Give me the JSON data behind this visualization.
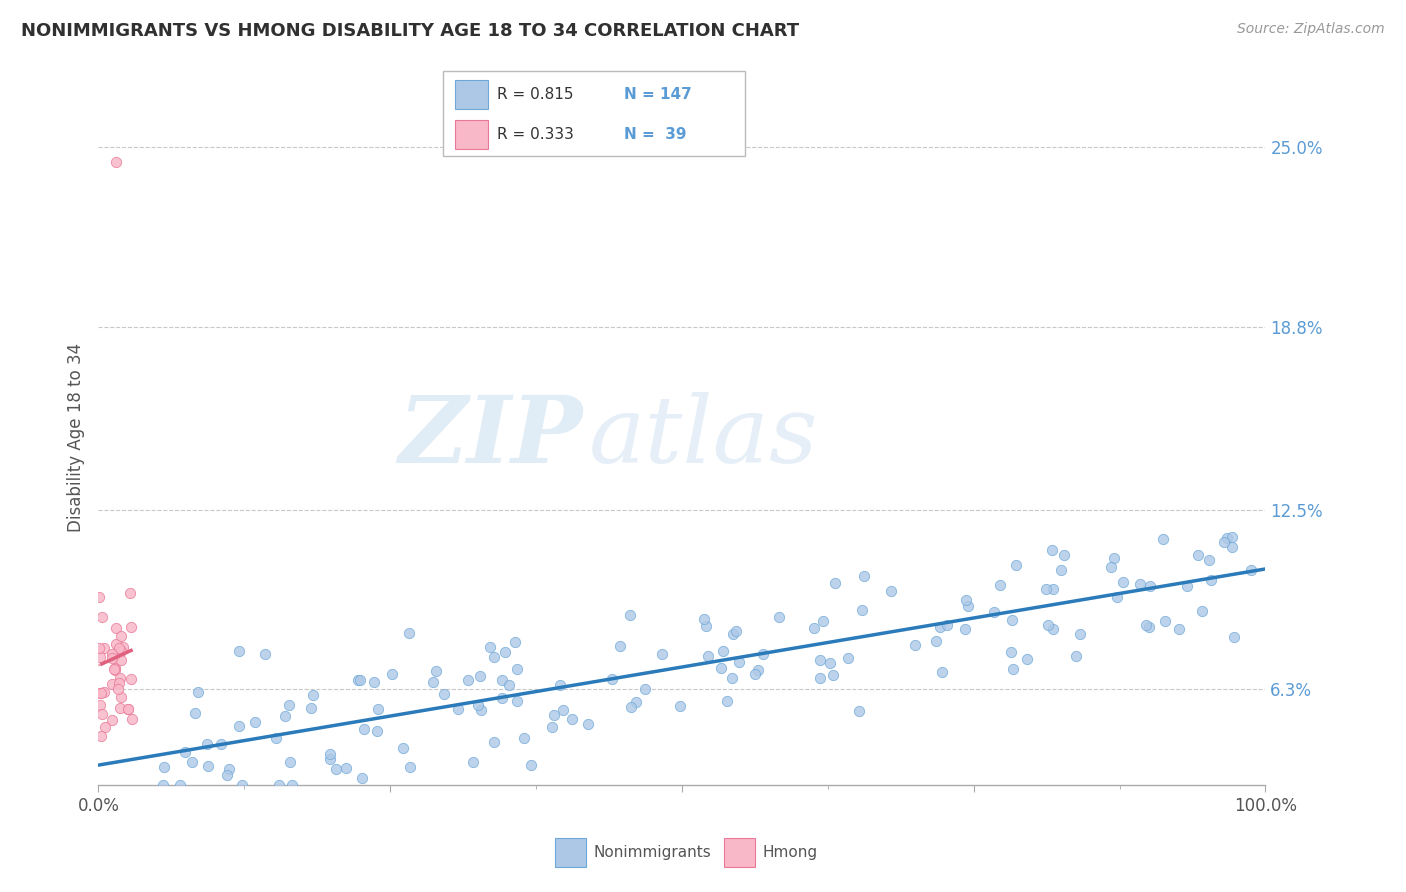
{
  "title": "NONIMMIGRANTS VS HMONG DISABILITY AGE 18 TO 34 CORRELATION CHART",
  "source": "Source: ZipAtlas.com",
  "ylabel": "Disability Age 18 to 34",
  "xlim": [
    0,
    100
  ],
  "ylim": [
    3.0,
    27.0
  ],
  "yticks": [
    6.3,
    12.5,
    18.8,
    25.0
  ],
  "xtick_labels": [
    "0.0%",
    "100.0%"
  ],
  "ytick_labels": [
    "6.3%",
    "12.5%",
    "18.8%",
    "25.0%"
  ],
  "blue_color": "#adc8e6",
  "blue_edge": "#6ea8d8",
  "pink_color": "#f9b8c8",
  "pink_edge": "#e87898",
  "trend_blue": "#2b7bba",
  "trend_pink": "#e06080",
  "legend_R_blue": "0.815",
  "legend_N_blue": "147",
  "legend_R_pink": "0.333",
  "legend_N_pink": " 39",
  "watermark_zip": "ZIP",
  "watermark_atlas": "atlas",
  "seed": 42,
  "n_blue": 147,
  "n_pink": 39,
  "background": "#ffffff",
  "grid_color": "#c8c8c8",
  "label_color": "#5b9bd5",
  "title_color": "#303030",
  "bottom_legend_label_blue": "Nonimmigrants",
  "bottom_legend_label_pink": "Hmong"
}
